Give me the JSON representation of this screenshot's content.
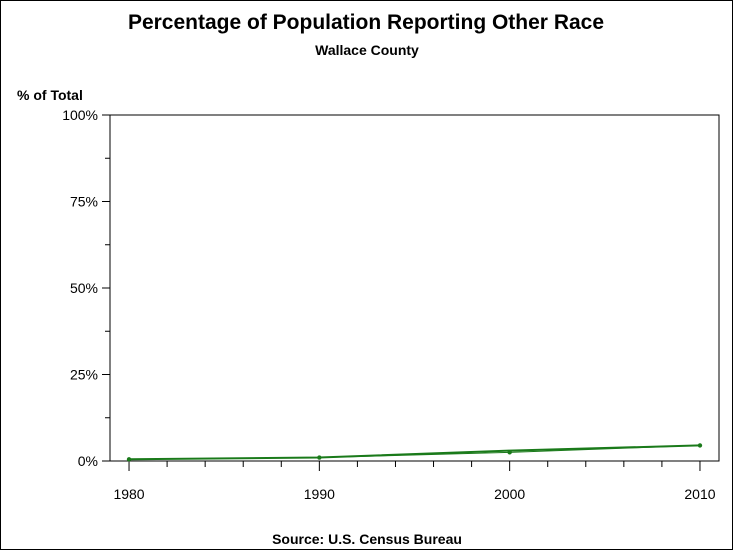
{
  "chart_data": {
    "type": "line",
    "title": "Percentage of Population Reporting Other Race",
    "subtitle": "Wallace County",
    "ylabel": "% of Total",
    "xlabel": "",
    "source": "Source: U.S. Census Bureau",
    "x": [
      1980,
      1990,
      2000,
      2010
    ],
    "xlim": [
      1979,
      2011
    ],
    "xticks": [
      "1980",
      "1990",
      "2000",
      "2010"
    ],
    "ylim": [
      0,
      100
    ],
    "yticks": [
      "0%",
      "25%",
      "50%",
      "75%",
      "100%"
    ],
    "grid": false,
    "series": [
      {
        "values": [
          0.5,
          1.0,
          2.5,
          4.5
        ],
        "color": "#1a7a1a"
      }
    ],
    "trend": {
      "values": [
        0.5,
        1.0,
        3.0,
        4.5
      ],
      "color": "#1a7a1a"
    }
  }
}
